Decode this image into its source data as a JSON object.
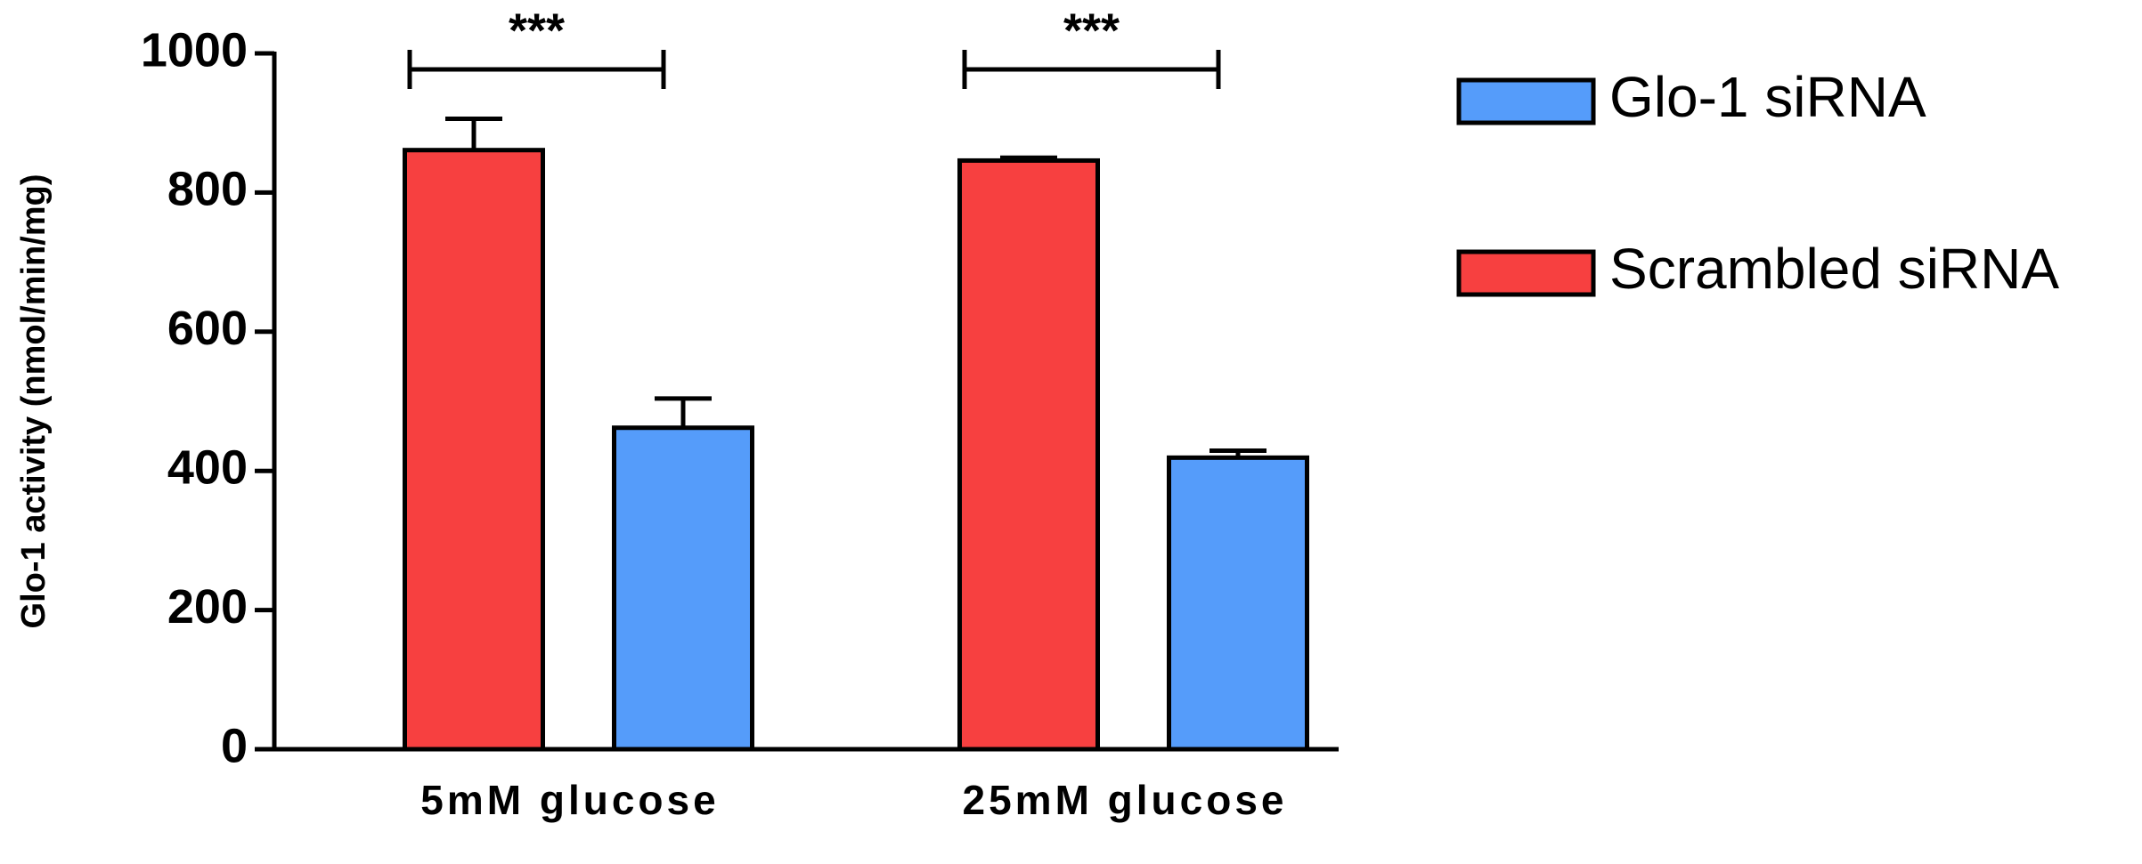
{
  "chart_data": {
    "type": "bar",
    "ylabel": "Glo-1 activity (nmol/min/mg)",
    "categories": [
      "5mM glucose",
      "25mM glucose"
    ],
    "series": [
      {
        "name": "Scrambled siRNA",
        "color": "#f74040",
        "values": [
          861,
          846
        ],
        "errors": [
          45,
          4
        ]
      },
      {
        "name": "Glo-1 siRNA",
        "color": "#559cfa",
        "values": [
          462,
          419
        ],
        "errors": [
          42,
          10
        ]
      }
    ],
    "ylim": [
      0,
      1000
    ],
    "yticks": [
      0,
      200,
      400,
      600,
      800,
      1000
    ],
    "annotations": [
      {
        "text": "***"
      },
      {
        "text": "***"
      }
    ]
  }
}
